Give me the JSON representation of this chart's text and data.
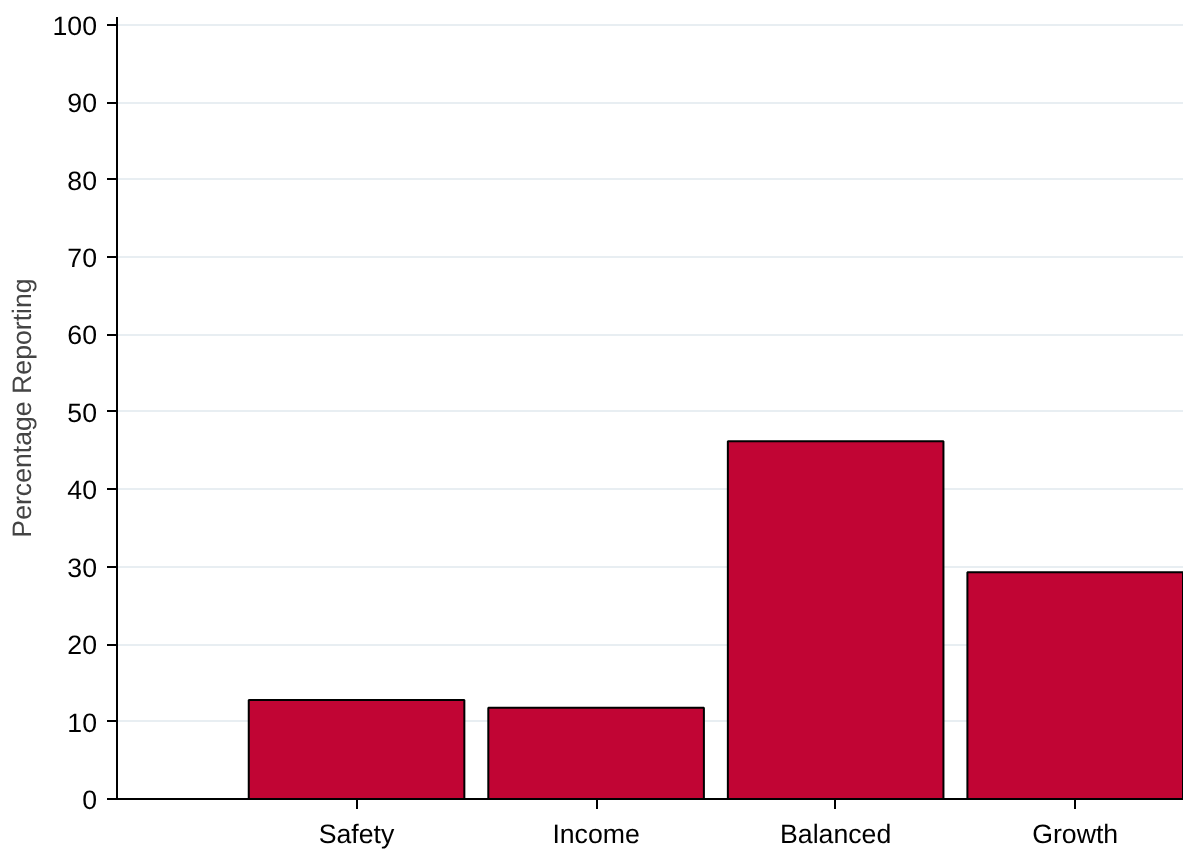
{
  "chart_data": {
    "type": "bar",
    "ylabel": "Percentage Reporting",
    "categories": [
      "Safety",
      "Income",
      "Balanced",
      "Growth"
    ],
    "values": [
      12.8,
      11.8,
      46.2,
      29.3
    ],
    "color": "#c10534",
    "ylim": [
      0,
      101
    ],
    "yticks": [
      0,
      10,
      20,
      30,
      40,
      50,
      60,
      70,
      80,
      90,
      100
    ],
    "grid": "y"
  }
}
